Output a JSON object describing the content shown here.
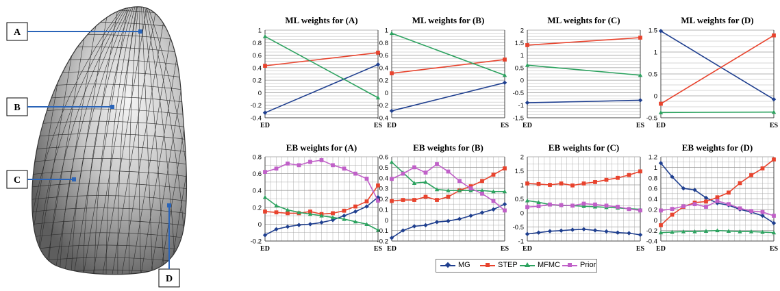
{
  "mesh": {
    "labels": [
      "A",
      "B",
      "C",
      "D"
    ]
  },
  "colors": {
    "MG": "#1f3f8f",
    "STEP": "#e8432d",
    "MFMC": "#2ca25f",
    "Prior": "#c060c8",
    "grid": "#9a9a9a",
    "callout": "#2a64b8"
  },
  "legend": [
    {
      "name": "MG",
      "marker": "diamond"
    },
    {
      "name": "STEP",
      "marker": "square"
    },
    {
      "name": "MFMC",
      "marker": "triangle"
    },
    {
      "name": "Prior",
      "marker": "square"
    }
  ],
  "chart_data": [
    {
      "type": "line",
      "title": "ML weights for (A)",
      "categories": [
        "ED",
        "ES"
      ],
      "ylim": [
        -0.4,
        1
      ],
      "yticks": [
        "-0.4",
        "-0.2",
        "0",
        "0.2",
        "0.4",
        "0.6",
        "0.8",
        "1"
      ],
      "series": [
        {
          "name": "MG",
          "values": [
            -0.32,
            0.45
          ]
        },
        {
          "name": "STEP",
          "values": [
            0.43,
            0.64
          ]
        },
        {
          "name": "MFMC",
          "values": [
            0.9,
            -0.08
          ]
        }
      ]
    },
    {
      "type": "line",
      "title": "ML weights for (B)",
      "categories": [
        "ED",
        "ES"
      ],
      "ylim": [
        -0.4,
        1
      ],
      "yticks": [
        "-0.4",
        "-0.2",
        "0",
        "0.2",
        "0.4",
        "0.6",
        "0.8",
        "1"
      ],
      "series": [
        {
          "name": "MG",
          "values": [
            -0.29,
            0.16
          ]
        },
        {
          "name": "STEP",
          "values": [
            0.31,
            0.53
          ]
        },
        {
          "name": "MFMC",
          "values": [
            0.95,
            0.28
          ]
        }
      ]
    },
    {
      "type": "line",
      "title": "ML weights for (C)",
      "categories": [
        "ED",
        "ES"
      ],
      "ylim": [
        -1.5,
        2
      ],
      "yticks": [
        "-1.5",
        "-1",
        "-0.5",
        "0",
        "0.5",
        "1",
        "1.5",
        "2"
      ],
      "series": [
        {
          "name": "MG",
          "values": [
            -0.9,
            -0.8
          ]
        },
        {
          "name": "STEP",
          "values": [
            1.4,
            1.7
          ]
        },
        {
          "name": "MFMC",
          "values": [
            0.6,
            0.2
          ]
        }
      ]
    },
    {
      "type": "line",
      "title": "ML weights for (D)",
      "categories": [
        "ED",
        "ES"
      ],
      "ylim": [
        -0.5,
        1.5
      ],
      "yticks": [
        "-0.5",
        "0",
        "0.5",
        "1",
        "1.5"
      ],
      "series": [
        {
          "name": "MG",
          "values": [
            1.48,
            -0.08
          ]
        },
        {
          "name": "STEP",
          "values": [
            -0.18,
            1.38
          ]
        },
        {
          "name": "MFMC",
          "values": [
            -0.38,
            -0.37
          ]
        }
      ]
    },
    {
      "type": "line",
      "title": "EB weights for (A)",
      "categories": [
        "ED",
        "",
        "",
        "",
        "",
        "",
        "",
        "",
        "",
        "",
        "ES"
      ],
      "ylim": [
        -0.2,
        0.8
      ],
      "yticks": [
        "-0.2",
        "0",
        "0.2",
        "0.4",
        "0.6",
        "0.8"
      ],
      "series": [
        {
          "name": "MG",
          "values": [
            -0.13,
            -0.06,
            -0.03,
            -0.01,
            0.0,
            0.02,
            0.05,
            0.1,
            0.15,
            0.21,
            0.32
          ]
        },
        {
          "name": "STEP",
          "values": [
            0.15,
            0.14,
            0.13,
            0.13,
            0.15,
            0.12,
            0.13,
            0.16,
            0.21,
            0.27,
            0.46
          ]
        },
        {
          "name": "MFMC",
          "values": [
            0.32,
            0.22,
            0.17,
            0.14,
            0.12,
            0.1,
            0.08,
            0.06,
            0.03,
            0.0,
            -0.07
          ]
        },
        {
          "name": "Prior",
          "values": [
            0.62,
            0.66,
            0.72,
            0.7,
            0.74,
            0.76,
            0.7,
            0.66,
            0.6,
            0.54,
            0.28
          ]
        }
      ]
    },
    {
      "type": "line",
      "title": "EB weights for (B)",
      "categories": [
        "ED",
        "",
        "",
        "",
        "",
        "",
        "",
        "",
        "",
        "",
        "ES"
      ],
      "ylim": [
        -0.2,
        0.6
      ],
      "yticks": [
        "-0.2",
        "-0.1",
        "0",
        "0.1",
        "0.2",
        "0.3",
        "0.4",
        "0.5",
        "0.6"
      ],
      "series": [
        {
          "name": "MG",
          "values": [
            -0.17,
            -0.1,
            -0.06,
            -0.05,
            -0.02,
            -0.01,
            0.01,
            0.04,
            0.07,
            0.1,
            0.15
          ]
        },
        {
          "name": "STEP",
          "values": [
            0.18,
            0.19,
            0.19,
            0.22,
            0.19,
            0.22,
            0.28,
            0.32,
            0.37,
            0.43,
            0.49
          ]
        },
        {
          "name": "MFMC",
          "values": [
            0.55,
            0.45,
            0.35,
            0.36,
            0.29,
            0.28,
            0.28,
            0.28,
            0.28,
            0.27,
            0.27
          ]
        },
        {
          "name": "Prior",
          "values": [
            0.39,
            0.44,
            0.5,
            0.45,
            0.53,
            0.46,
            0.37,
            0.3,
            0.25,
            0.18,
            0.09
          ]
        }
      ]
    },
    {
      "type": "line",
      "title": "EB weights for (C)",
      "categories": [
        "ED",
        "",
        "",
        "",
        "",
        "",
        "",
        "",
        "",
        "",
        "ES"
      ],
      "ylim": [
        -1,
        2
      ],
      "yticks": [
        "-1",
        "-0.5",
        "0",
        "0.5",
        "1",
        "1.5",
        "2"
      ],
      "series": [
        {
          "name": "MG",
          "values": [
            -0.75,
            -0.7,
            -0.65,
            -0.63,
            -0.6,
            -0.58,
            -0.62,
            -0.66,
            -0.7,
            -0.72,
            -0.78
          ]
        },
        {
          "name": "STEP",
          "values": [
            1.05,
            1.03,
            1.0,
            1.05,
            0.98,
            1.05,
            1.1,
            1.18,
            1.25,
            1.35,
            1.48
          ]
        },
        {
          "name": "MFMC",
          "values": [
            0.44,
            0.38,
            0.3,
            0.27,
            0.26,
            0.24,
            0.22,
            0.2,
            0.18,
            0.15,
            0.13
          ]
        },
        {
          "name": "Prior",
          "values": [
            0.21,
            0.24,
            0.3,
            0.28,
            0.26,
            0.33,
            0.3,
            0.26,
            0.22,
            0.14,
            0.09
          ]
        }
      ]
    },
    {
      "type": "line",
      "title": "EB weights for (D)",
      "categories": [
        "ED",
        "",
        "",
        "",
        "",
        "",
        "",
        "",
        "",
        "",
        "ES"
      ],
      "ylim": [
        -0.4,
        1.2
      ],
      "yticks": [
        "-0.4",
        "-0.2",
        "0",
        "0.2",
        "0.4",
        "0.6",
        "0.8",
        "1",
        "1.2"
      ],
      "series": [
        {
          "name": "MG",
          "values": [
            1.08,
            0.82,
            0.6,
            0.57,
            0.42,
            0.32,
            0.28,
            0.2,
            0.15,
            0.08,
            -0.06
          ]
        },
        {
          "name": "STEP",
          "values": [
            -0.1,
            0.1,
            0.25,
            0.33,
            0.35,
            0.43,
            0.52,
            0.7,
            0.85,
            0.98,
            1.15
          ]
        },
        {
          "name": "MFMC",
          "values": [
            -0.24,
            -0.23,
            -0.22,
            -0.22,
            -0.21,
            -0.2,
            -0.21,
            -0.22,
            -0.22,
            -0.23,
            -0.24
          ]
        },
        {
          "name": "Prior",
          "values": [
            0.18,
            0.21,
            0.26,
            0.3,
            0.25,
            0.36,
            0.3,
            0.22,
            0.17,
            0.15,
            0.08
          ]
        }
      ]
    }
  ]
}
